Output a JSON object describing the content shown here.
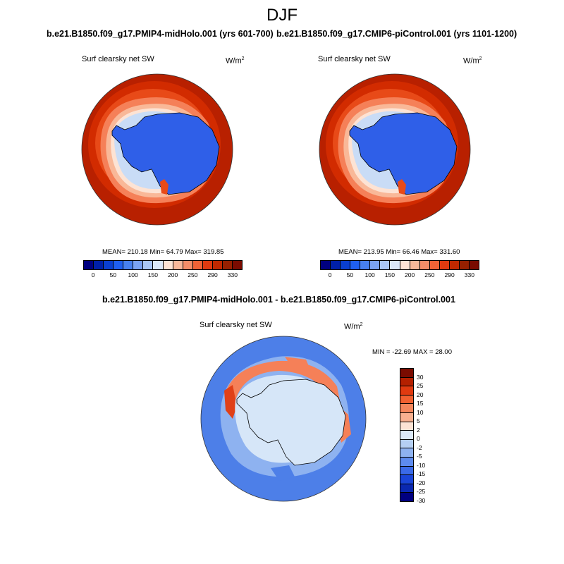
{
  "title": "DJF",
  "panel1": {
    "case": "b.e21.B1850.f09_g17.PMIP4-midHolo.001 (yrs 601-700)",
    "variable": "Surf clearsky net SW",
    "units_base": "W/m",
    "units_exp": "2",
    "stats": "MEAN= 210.18  Min=  64.79  Max= 319.85"
  },
  "panel2": {
    "case": "b.e21.B1850.f09_g17.CMIP6-piControl.001 (yrs 1101-1200)",
    "variable": "Surf clearsky net SW",
    "units_base": "W/m",
    "units_exp": "2",
    "stats": "MEAN= 213.95  Min=  66.46  Max= 331.60"
  },
  "panel3": {
    "case": "b.e21.B1850.f09_g17.PMIP4-midHolo.001 - b.e21.B1850.f09_g17.CMIP6-piControl.001",
    "variable": "Surf clearsky net SW",
    "units_base": "W/m",
    "units_exp": "2",
    "stats": "MIN = -22.69 MAX =  28.00"
  },
  "colorbar_abs": {
    "colors": [
      "#00007f",
      "#0020a8",
      "#0a3fd0",
      "#1f5ff0",
      "#4780f0",
      "#7aa2f2",
      "#a9c6f5",
      "#dbe8f8",
      "#fde3d4",
      "#f8b89a",
      "#f48d68",
      "#f06236",
      "#e03a10",
      "#c02800",
      "#962000",
      "#7a0b00"
    ],
    "tick_labels": [
      "0",
      "50",
      "100",
      "150",
      "200",
      "250",
      "290",
      "330"
    ]
  },
  "colorbar_diff": {
    "colors": [
      "#7a0b00",
      "#b42000",
      "#e03a10",
      "#f26030",
      "#f5865c",
      "#f8b090",
      "#fde3d4",
      "#dbe8f8",
      "#b5cff3",
      "#8eb2f0",
      "#5d8bee",
      "#3a6ae8",
      "#1a45d8",
      "#0a28b0",
      "#000080"
    ],
    "tick_labels": [
      "30",
      "25",
      "20",
      "15",
      "10",
      "5",
      "2",
      "0",
      "-2",
      "-5",
      "-10",
      "-15",
      "-20",
      "-25",
      "-30"
    ]
  },
  "map_colors": {
    "ring_outer": "#b82000",
    "ring_2": "#d22b00",
    "ring_3": "#e84a18",
    "ring_4": "#f58058",
    "ring_5": "#f9b898",
    "ring_6": "#fde3d4",
    "ring_7": "#c9dcf6",
    "ring_8": "#8eb2f0",
    "land": "#2f5fe8",
    "diff_ocean": "#4d7fe8",
    "diff_mid": "#8eb2f0",
    "diff_light": "#d6e6f8",
    "diff_warm1": "#f58058",
    "diff_warm2": "#e04018"
  }
}
